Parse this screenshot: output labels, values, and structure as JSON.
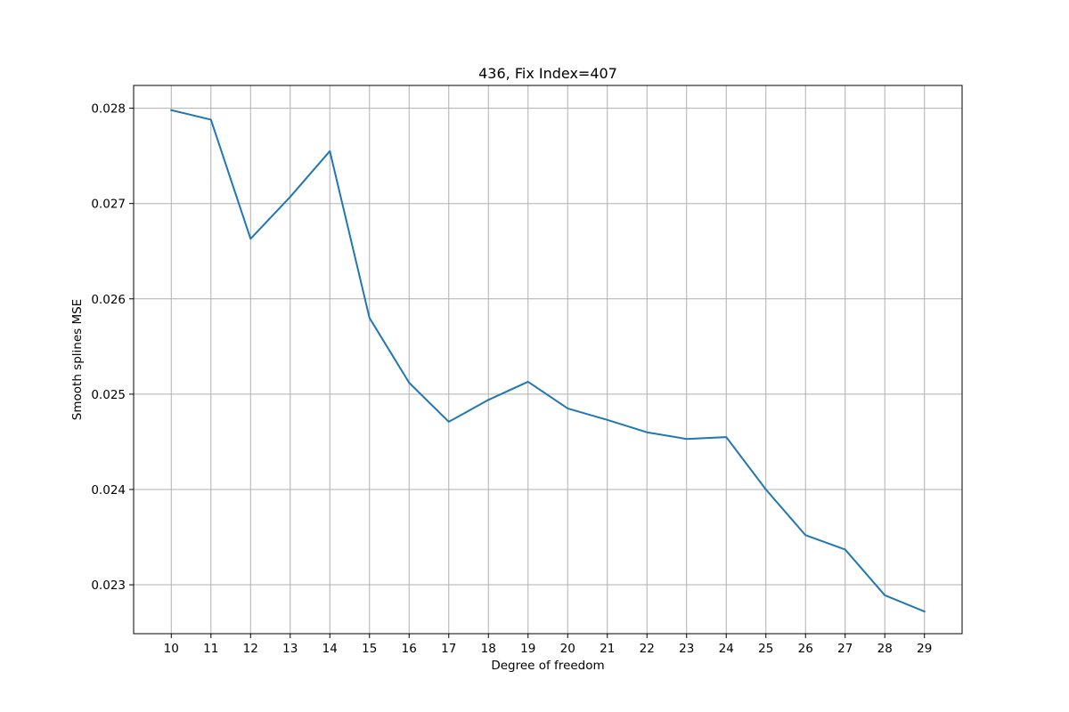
{
  "chart_data": {
    "type": "line",
    "title": "436, Fix Index=407",
    "xlabel": "Degree of freedom",
    "ylabel": "Smooth splines MSE",
    "x": [
      10,
      11,
      12,
      13,
      14,
      15,
      16,
      17,
      18,
      19,
      20,
      21,
      22,
      23,
      24,
      25,
      26,
      27,
      28,
      29
    ],
    "series": [
      {
        "values": [
          0.02798,
          0.02788,
          0.02663,
          0.02707,
          0.02755,
          0.0258,
          0.02512,
          0.02471,
          0.02494,
          0.02513,
          0.02485,
          0.02473,
          0.0246,
          0.02453,
          0.02455,
          0.024,
          0.02352,
          0.02337,
          0.02289,
          0.02272
        ],
        "color": "#1f77b4"
      }
    ],
    "xticks": [
      "10",
      "11",
      "12",
      "13",
      "14",
      "15",
      "16",
      "17",
      "18",
      "19",
      "20",
      "21",
      "22",
      "23",
      "24",
      "25",
      "26",
      "27",
      "28",
      "29"
    ],
    "yticks": [
      "0.023",
      "0.024",
      "0.025",
      "0.026",
      "0.027",
      "0.028"
    ],
    "xlim": [
      9.05,
      29.95
    ],
    "ylim": [
      0.022487,
      0.028239
    ],
    "grid": true,
    "legend": false
  }
}
